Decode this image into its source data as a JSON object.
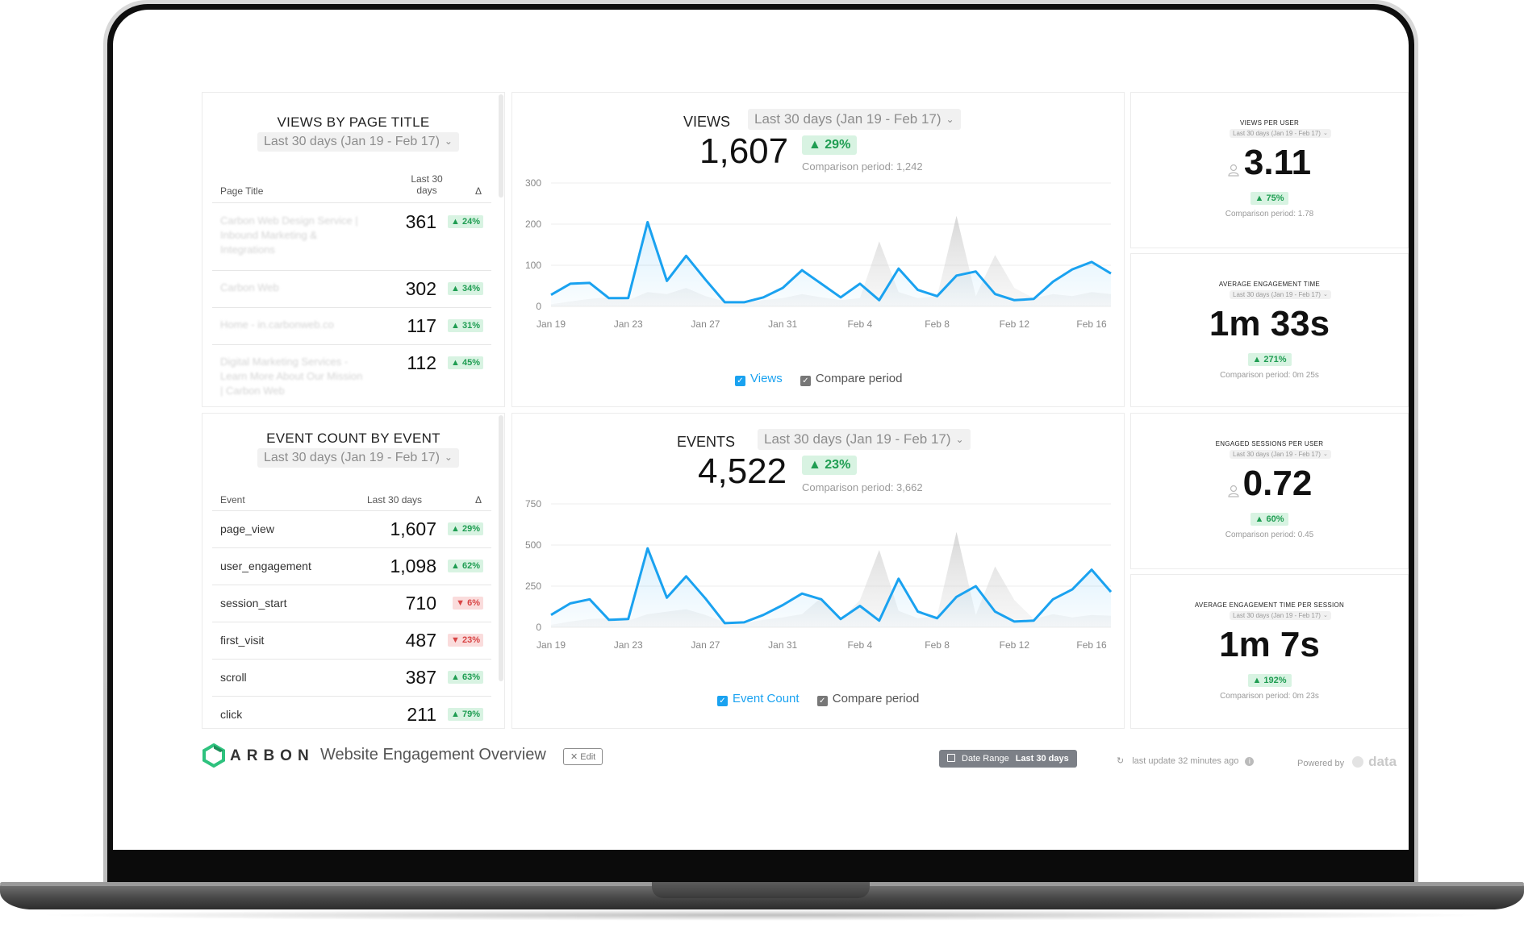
{
  "range_label": "Last 30 days (Jan 19 - Feb 17)",
  "views_by_page": {
    "title": "VIEWS BY PAGE TITLE",
    "headers": {
      "page": "Page Title",
      "period": "Last 30 days",
      "delta": "Δ"
    },
    "rows": [
      {
        "label": "Carbon Web Design Service | Inbound Marketing & Integrations",
        "value": "361",
        "change": "▲ 24%"
      },
      {
        "label": "Carbon Web",
        "value": "302",
        "change": "▲ 34%"
      },
      {
        "label": "Home - in.carbonweb.co",
        "value": "117",
        "change": "▲ 31%"
      },
      {
        "label": "Digital Marketing Services - Learn More About Our Mission | Carbon Web",
        "value": "112",
        "change": "▲ 45%"
      }
    ]
  },
  "event_count": {
    "title": "EVENT COUNT BY EVENT",
    "headers": {
      "event": "Event",
      "period": "Last 30 days",
      "delta": "Δ"
    },
    "rows": [
      {
        "label": "page_view",
        "value": "1,607",
        "change": "▲ 29%",
        "dir": "up"
      },
      {
        "label": "user_engagement",
        "value": "1,098",
        "change": "▲ 62%",
        "dir": "up"
      },
      {
        "label": "session_start",
        "value": "710",
        "change": "▼ 6%",
        "dir": "down"
      },
      {
        "label": "first_visit",
        "value": "487",
        "change": "▼ 23%",
        "dir": "down"
      },
      {
        "label": "scroll",
        "value": "387",
        "change": "▲ 63%",
        "dir": "up"
      },
      {
        "label": "click",
        "value": "211",
        "change": "▲ 79%",
        "dir": "up"
      }
    ]
  },
  "views_chart": {
    "title": "VIEWS",
    "value": "1,607",
    "change": "▲ 29%",
    "comparison": "Comparison period: 1,242",
    "legend_primary": "Views",
    "legend_compare": "Compare period"
  },
  "events_chart": {
    "title": "EVENTS",
    "value": "4,522",
    "change": "▲ 23%",
    "comparison": "Comparison period: 3,662",
    "legend_primary": "Event Count",
    "legend_compare": "Compare period"
  },
  "metrics": [
    {
      "title": "VIEWS PER USER",
      "value": "3.11",
      "change": "▲ 75%",
      "comparison": "Comparison period: 1.78"
    },
    {
      "title": "AVERAGE ENGAGEMENT TIME",
      "value": "1m 33s",
      "change": "▲ 271%",
      "comparison": "Comparison period: 0m 25s"
    },
    {
      "title": "ENGAGED SESSIONS PER USER",
      "value": "0.72",
      "change": "▲ 60%",
      "comparison": "Comparison period: 0.45"
    },
    {
      "title": "AVERAGE ENGAGEMENT TIME PER SESSION",
      "value": "1m 7s",
      "change": "▲ 192%",
      "comparison": "Comparison period: 0m 23s"
    }
  ],
  "footer": {
    "brand": "ARBON",
    "dashboard_title": "Website Engagement Overview",
    "edit": "✕ Edit",
    "date_range_label": "Date Range",
    "date_range_value": "Last 30 days",
    "last_update": "last update 32 minutes ago",
    "powered_by": "Powered by",
    "powered_brand": "data"
  },
  "chart_data": [
    {
      "type": "area",
      "title": "VIEWS",
      "x": [
        "Jan 19",
        "Jan 20",
        "Jan 21",
        "Jan 22",
        "Jan 23",
        "Jan 24",
        "Jan 25",
        "Jan 26",
        "Jan 27",
        "Jan 28",
        "Jan 29",
        "Jan 30",
        "Jan 31",
        "Feb 1",
        "Feb 2",
        "Feb 3",
        "Feb 4",
        "Feb 5",
        "Feb 6",
        "Feb 7",
        "Feb 8",
        "Feb 9",
        "Feb 10",
        "Feb 11",
        "Feb 12",
        "Feb 13",
        "Feb 14",
        "Feb 15",
        "Feb 16",
        "Feb 17"
      ],
      "x_ticks": [
        "Jan 19",
        "Jan 23",
        "Jan 27",
        "Jan 31",
        "Feb 4",
        "Feb 8",
        "Feb 12",
        "Feb 16"
      ],
      "y_ticks": [
        0,
        100,
        200,
        300
      ],
      "ylim": [
        0,
        300
      ],
      "series": [
        {
          "name": "Views",
          "values": [
            28,
            55,
            57,
            20,
            20,
            205,
            62,
            123,
            65,
            10,
            10,
            22,
            45,
            88,
            55,
            22,
            55,
            15,
            92,
            40,
            25,
            75,
            85,
            30,
            15,
            18,
            60,
            90,
            108,
            80
          ]
        },
        {
          "name": "Compare period",
          "values": [
            5,
            12,
            18,
            22,
            15,
            35,
            30,
            45,
            25,
            12,
            10,
            15,
            20,
            30,
            22,
            15,
            20,
            158,
            35,
            20,
            25,
            220,
            25,
            125,
            45,
            20,
            30,
            25,
            35,
            30
          ]
        }
      ]
    },
    {
      "type": "area",
      "title": "EVENTS",
      "x": [
        "Jan 19",
        "Jan 20",
        "Jan 21",
        "Jan 22",
        "Jan 23",
        "Jan 24",
        "Jan 25",
        "Jan 26",
        "Jan 27",
        "Jan 28",
        "Jan 29",
        "Jan 30",
        "Jan 31",
        "Feb 1",
        "Feb 2",
        "Feb 3",
        "Feb 4",
        "Feb 5",
        "Feb 6",
        "Feb 7",
        "Feb 8",
        "Feb 9",
        "Feb 10",
        "Feb 11",
        "Feb 12",
        "Feb 13",
        "Feb 14",
        "Feb 15",
        "Feb 16",
        "Feb 17"
      ],
      "x_ticks": [
        "Jan 19",
        "Jan 23",
        "Jan 27",
        "Jan 31",
        "Feb 4",
        "Feb 8",
        "Feb 12",
        "Feb 16"
      ],
      "y_ticks": [
        0,
        250,
        500,
        750
      ],
      "ylim": [
        0,
        750
      ],
      "series": [
        {
          "name": "Event Count",
          "values": [
            75,
            145,
            170,
            45,
            50,
            480,
            180,
            310,
            175,
            25,
            30,
            75,
            135,
            205,
            170,
            50,
            130,
            40,
            295,
            95,
            55,
            185,
            250,
            95,
            35,
            40,
            170,
            230,
            350,
            215
          ]
        },
        {
          "name": "Compare period",
          "values": [
            15,
            35,
            50,
            55,
            40,
            80,
            95,
            110,
            75,
            30,
            25,
            45,
            60,
            80,
            180,
            45,
            165,
            470,
            100,
            55,
            70,
            580,
            75,
            370,
            165,
            50,
            80,
            60,
            75,
            70
          ]
        }
      ]
    }
  ]
}
